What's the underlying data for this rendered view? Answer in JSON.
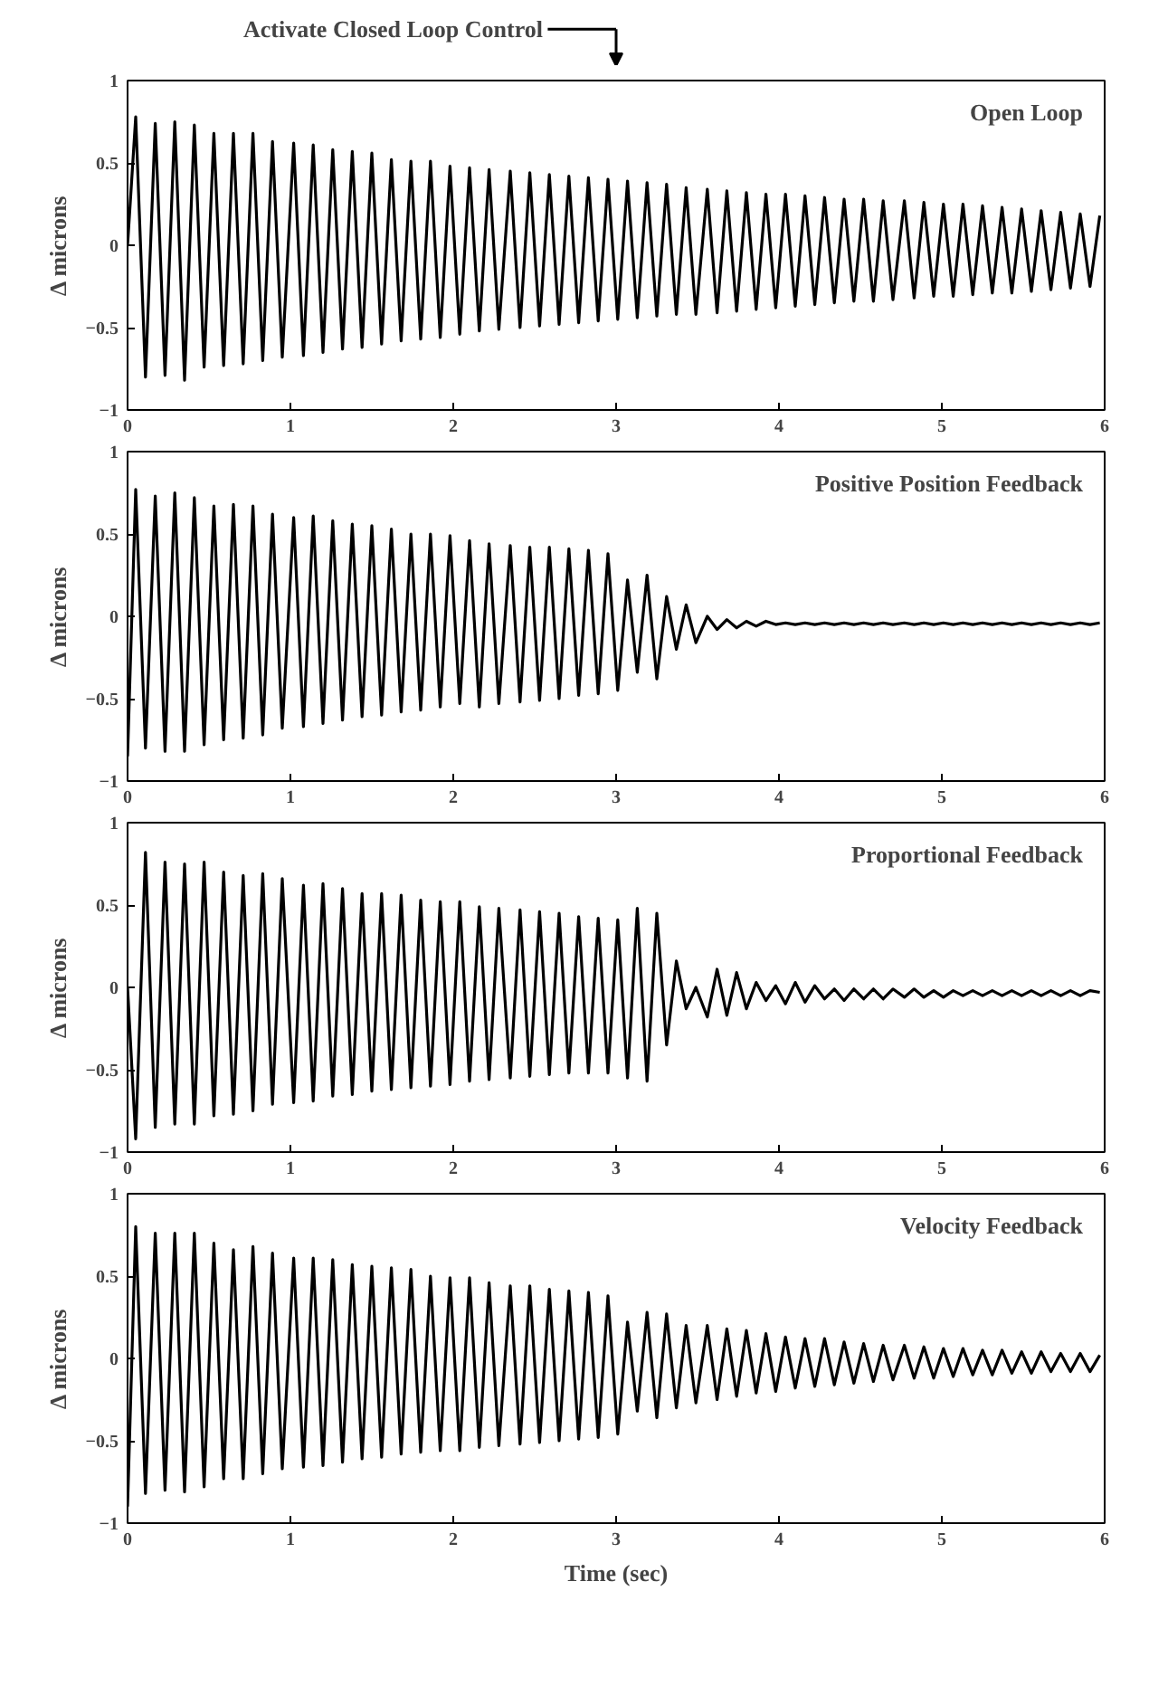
{
  "chart_data": [
    {
      "type": "line",
      "title": "Open Loop",
      "ylabel": "Δ microns",
      "xlim": [
        0,
        6
      ],
      "ylim": [
        -1,
        1
      ],
      "xticks": [
        0,
        1,
        2,
        3,
        4,
        5,
        6
      ],
      "yticks": [
        -1,
        -0.5,
        0,
        0.5,
        1
      ],
      "annotations": [
        "Activate Closed Loop Control"
      ],
      "x": [
        0,
        0.05,
        0.11,
        0.17,
        0.23,
        0.29,
        0.35,
        0.41,
        0.47,
        0.53,
        0.59,
        0.65,
        0.71,
        0.77,
        0.83,
        0.89,
        0.95,
        1.02,
        1.08,
        1.14,
        1.2,
        1.26,
        1.32,
        1.38,
        1.44,
        1.5,
        1.56,
        1.62,
        1.68,
        1.74,
        1.8,
        1.86,
        1.92,
        1.98,
        2.04,
        2.1,
        2.16,
        2.22,
        2.28,
        2.35,
        2.41,
        2.47,
        2.53,
        2.59,
        2.65,
        2.71,
        2.77,
        2.83,
        2.89,
        2.95,
        3.01,
        3.07,
        3.13,
        3.19,
        3.25,
        3.31,
        3.37,
        3.43,
        3.49,
        3.56,
        3.62,
        3.68,
        3.74,
        3.8,
        3.86,
        3.92,
        3.98,
        4.04,
        4.1,
        4.16,
        4.22,
        4.28,
        4.34,
        4.4,
        4.46,
        4.52,
        4.58,
        4.64,
        4.7,
        4.77,
        4.83,
        4.89,
        4.95,
        5.01,
        5.07,
        5.13,
        5.19,
        5.25,
        5.31,
        5.37,
        5.43,
        5.49,
        5.55,
        5.61,
        5.67,
        5.73,
        5.79,
        5.85,
        5.91,
        5.97
      ],
      "series": [
        {
          "color": "#000000",
          "values": [
            0,
            0.78,
            -0.8,
            0.74,
            -0.79,
            0.75,
            -0.82,
            0.73,
            -0.74,
            0.68,
            -0.73,
            0.68,
            -0.72,
            0.68,
            -0.7,
            0.63,
            -0.68,
            0.62,
            -0.67,
            0.61,
            -0.65,
            0.58,
            -0.63,
            0.57,
            -0.62,
            0.56,
            -0.6,
            0.52,
            -0.58,
            0.51,
            -0.57,
            0.51,
            -0.56,
            0.48,
            -0.54,
            0.47,
            -0.52,
            0.46,
            -0.51,
            0.45,
            -0.5,
            0.44,
            -0.49,
            0.43,
            -0.48,
            0.42,
            -0.47,
            0.41,
            -0.46,
            0.4,
            -0.45,
            0.39,
            -0.44,
            0.38,
            -0.43,
            0.37,
            -0.42,
            0.35,
            -0.42,
            0.34,
            -0.41,
            0.33,
            -0.4,
            0.32,
            -0.39,
            0.31,
            -0.38,
            0.31,
            -0.37,
            0.3,
            -0.36,
            0.29,
            -0.35,
            0.28,
            -0.34,
            0.28,
            -0.34,
            0.27,
            -0.33,
            0.27,
            -0.32,
            0.26,
            -0.31,
            0.25,
            -0.31,
            0.25,
            -0.3,
            0.24,
            -0.29,
            0.23,
            -0.29,
            0.22,
            -0.28,
            0.21,
            -0.27,
            0.2,
            -0.26,
            0.19,
            -0.25,
            0.18
          ]
        }
      ]
    },
    {
      "type": "line",
      "title": "Positive Position Feedback",
      "ylabel": "Δ microns",
      "xlim": [
        0,
        6
      ],
      "ylim": [
        -1,
        1
      ],
      "xticks": [
        0,
        1,
        2,
        3,
        4,
        5,
        6
      ],
      "yticks": [
        -1,
        -0.5,
        0,
        0.5,
        1
      ],
      "x": [
        0,
        0.05,
        0.11,
        0.17,
        0.23,
        0.29,
        0.35,
        0.41,
        0.47,
        0.53,
        0.59,
        0.65,
        0.71,
        0.77,
        0.83,
        0.89,
        0.95,
        1.02,
        1.08,
        1.14,
        1.2,
        1.26,
        1.32,
        1.38,
        1.44,
        1.5,
        1.56,
        1.62,
        1.68,
        1.74,
        1.8,
        1.86,
        1.92,
        1.98,
        2.04,
        2.1,
        2.16,
        2.22,
        2.28,
        2.35,
        2.41,
        2.47,
        2.53,
        2.59,
        2.65,
        2.71,
        2.77,
        2.83,
        2.89,
        2.95,
        3.01,
        3.07,
        3.13,
        3.19,
        3.25,
        3.31,
        3.37,
        3.43,
        3.49,
        3.56,
        3.62,
        3.68,
        3.74,
        3.8,
        3.86,
        3.92,
        3.98,
        4.04,
        4.1,
        4.16,
        4.22,
        4.28,
        4.34,
        4.4,
        4.46,
        4.52,
        4.58,
        4.64,
        4.7,
        4.77,
        4.83,
        4.89,
        4.95,
        5.01,
        5.07,
        5.13,
        5.19,
        5.25,
        5.31,
        5.37,
        5.43,
        5.49,
        5.55,
        5.61,
        5.67,
        5.73,
        5.79,
        5.85,
        5.91,
        5.97
      ],
      "series": [
        {
          "color": "#000000",
          "values": [
            -0.85,
            0.77,
            -0.8,
            0.73,
            -0.82,
            0.75,
            -0.82,
            0.72,
            -0.78,
            0.67,
            -0.75,
            0.68,
            -0.74,
            0.67,
            -0.72,
            0.62,
            -0.68,
            0.6,
            -0.67,
            0.61,
            -0.65,
            0.58,
            -0.63,
            0.56,
            -0.61,
            0.55,
            -0.6,
            0.53,
            -0.58,
            0.5,
            -0.57,
            0.5,
            -0.55,
            0.49,
            -0.53,
            0.46,
            -0.55,
            0.44,
            -0.53,
            0.43,
            -0.52,
            0.42,
            -0.51,
            0.42,
            -0.5,
            0.41,
            -0.48,
            0.4,
            -0.47,
            0.38,
            -0.45,
            0.22,
            -0.34,
            0.25,
            -0.38,
            0.12,
            -0.2,
            0.07,
            -0.16,
            0.0,
            -0.08,
            -0.02,
            -0.07,
            -0.03,
            -0.06,
            -0.03,
            -0.05,
            -0.04,
            -0.05,
            -0.04,
            -0.05,
            -0.04,
            -0.05,
            -0.04,
            -0.05,
            -0.04,
            -0.05,
            -0.04,
            -0.05,
            -0.04,
            -0.05,
            -0.04,
            -0.05,
            -0.04,
            -0.05,
            -0.04,
            -0.05,
            -0.04,
            -0.05,
            -0.04,
            -0.05,
            -0.04,
            -0.05,
            -0.04,
            -0.05,
            -0.04,
            -0.05,
            -0.04,
            -0.05,
            -0.04
          ]
        }
      ]
    },
    {
      "type": "line",
      "title": "Proportional Feedback",
      "ylabel": "Δ microns",
      "xlim": [
        0,
        6
      ],
      "ylim": [
        -1,
        1
      ],
      "xticks": [
        0,
        1,
        2,
        3,
        4,
        5,
        6
      ],
      "yticks": [
        -1,
        -0.5,
        0,
        0.5,
        1
      ],
      "x": [
        0,
        0.05,
        0.11,
        0.17,
        0.23,
        0.29,
        0.35,
        0.41,
        0.47,
        0.53,
        0.59,
        0.65,
        0.71,
        0.77,
        0.83,
        0.89,
        0.95,
        1.02,
        1.08,
        1.14,
        1.2,
        1.26,
        1.32,
        1.38,
        1.44,
        1.5,
        1.56,
        1.62,
        1.68,
        1.74,
        1.8,
        1.86,
        1.92,
        1.98,
        2.04,
        2.1,
        2.16,
        2.22,
        2.28,
        2.35,
        2.41,
        2.47,
        2.53,
        2.59,
        2.65,
        2.71,
        2.77,
        2.83,
        2.89,
        2.95,
        3.01,
        3.07,
        3.13,
        3.19,
        3.25,
        3.31,
        3.37,
        3.43,
        3.49,
        3.56,
        3.62,
        3.68,
        3.74,
        3.8,
        3.86,
        3.92,
        3.98,
        4.04,
        4.1,
        4.16,
        4.22,
        4.28,
        4.34,
        4.4,
        4.46,
        4.52,
        4.58,
        4.64,
        4.7,
        4.77,
        4.83,
        4.89,
        4.95,
        5.01,
        5.07,
        5.13,
        5.19,
        5.25,
        5.31,
        5.37,
        5.43,
        5.49,
        5.55,
        5.61,
        5.67,
        5.73,
        5.79,
        5.85,
        5.91,
        5.97
      ],
      "series": [
        {
          "color": "#000000",
          "values": [
            0,
            -0.92,
            0.82,
            -0.85,
            0.76,
            -0.83,
            0.75,
            -0.83,
            0.76,
            -0.78,
            0.7,
            -0.77,
            0.68,
            -0.75,
            0.69,
            -0.71,
            0.66,
            -0.7,
            0.62,
            -0.69,
            0.63,
            -0.66,
            0.6,
            -0.65,
            0.57,
            -0.63,
            0.57,
            -0.62,
            0.56,
            -0.61,
            0.53,
            -0.6,
            0.52,
            -0.59,
            0.52,
            -0.57,
            0.49,
            -0.56,
            0.48,
            -0.55,
            0.47,
            -0.54,
            0.46,
            -0.53,
            0.45,
            -0.52,
            0.43,
            -0.52,
            0.42,
            -0.52,
            0.41,
            -0.55,
            0.48,
            -0.57,
            0.45,
            -0.35,
            0.16,
            -0.13,
            0.0,
            -0.18,
            0.11,
            -0.17,
            0.09,
            -0.13,
            0.03,
            -0.08,
            0.01,
            -0.1,
            0.03,
            -0.09,
            0.01,
            -0.07,
            -0.01,
            -0.08,
            -0.01,
            -0.07,
            -0.01,
            -0.07,
            -0.01,
            -0.06,
            -0.01,
            -0.06,
            -0.02,
            -0.06,
            -0.02,
            -0.05,
            -0.02,
            -0.05,
            -0.02,
            -0.05,
            -0.02,
            -0.05,
            -0.02,
            -0.05,
            -0.02,
            -0.05,
            -0.02,
            -0.05,
            -0.02,
            -0.03
          ]
        }
      ]
    },
    {
      "type": "line",
      "title": "Velocity Feedback",
      "xlabel": "Time (sec)",
      "ylabel": "Δ microns",
      "xlim": [
        0,
        6
      ],
      "ylim": [
        -1,
        1
      ],
      "xticks": [
        0,
        1,
        2,
        3,
        4,
        5,
        6
      ],
      "yticks": [
        -1,
        -0.5,
        0,
        0.5,
        1
      ],
      "x": [
        0,
        0.05,
        0.11,
        0.17,
        0.23,
        0.29,
        0.35,
        0.41,
        0.47,
        0.53,
        0.59,
        0.65,
        0.71,
        0.77,
        0.83,
        0.89,
        0.95,
        1.02,
        1.08,
        1.14,
        1.2,
        1.26,
        1.32,
        1.38,
        1.44,
        1.5,
        1.56,
        1.62,
        1.68,
        1.74,
        1.8,
        1.86,
        1.92,
        1.98,
        2.04,
        2.1,
        2.16,
        2.22,
        2.28,
        2.35,
        2.41,
        2.47,
        2.53,
        2.59,
        2.65,
        2.71,
        2.77,
        2.83,
        2.89,
        2.95,
        3.01,
        3.07,
        3.13,
        3.19,
        3.25,
        3.31,
        3.37,
        3.43,
        3.49,
        3.56,
        3.62,
        3.68,
        3.74,
        3.8,
        3.86,
        3.92,
        3.98,
        4.04,
        4.1,
        4.16,
        4.22,
        4.28,
        4.34,
        4.4,
        4.46,
        4.52,
        4.58,
        4.64,
        4.7,
        4.77,
        4.83,
        4.89,
        4.95,
        5.01,
        5.07,
        5.13,
        5.19,
        5.25,
        5.31,
        5.37,
        5.43,
        5.49,
        5.55,
        5.61,
        5.67,
        5.73,
        5.79,
        5.85,
        5.91,
        5.97
      ],
      "series": [
        {
          "color": "#000000",
          "values": [
            -0.9,
            0.8,
            -0.82,
            0.76,
            -0.8,
            0.76,
            -0.81,
            0.76,
            -0.78,
            0.7,
            -0.73,
            0.66,
            -0.73,
            0.68,
            -0.7,
            0.64,
            -0.67,
            0.61,
            -0.66,
            0.61,
            -0.65,
            0.6,
            -0.63,
            0.57,
            -0.61,
            0.56,
            -0.6,
            0.55,
            -0.58,
            0.54,
            -0.57,
            0.5,
            -0.56,
            0.49,
            -0.56,
            0.49,
            -0.54,
            0.46,
            -0.53,
            0.44,
            -0.52,
            0.44,
            -0.51,
            0.42,
            -0.5,
            0.41,
            -0.49,
            0.4,
            -0.48,
            0.38,
            -0.46,
            0.22,
            -0.32,
            0.28,
            -0.36,
            0.27,
            -0.3,
            0.2,
            -0.27,
            0.2,
            -0.25,
            0.18,
            -0.23,
            0.17,
            -0.21,
            0.15,
            -0.2,
            0.13,
            -0.18,
            0.12,
            -0.17,
            0.12,
            -0.16,
            0.1,
            -0.15,
            0.09,
            -0.14,
            0.08,
            -0.13,
            0.08,
            -0.12,
            0.07,
            -0.12,
            0.06,
            -0.11,
            0.06,
            -0.1,
            0.05,
            -0.1,
            0.05,
            -0.09,
            0.04,
            -0.09,
            0.04,
            -0.08,
            0.03,
            -0.08,
            0.03,
            -0.08,
            0.02
          ]
        }
      ]
    }
  ]
}
